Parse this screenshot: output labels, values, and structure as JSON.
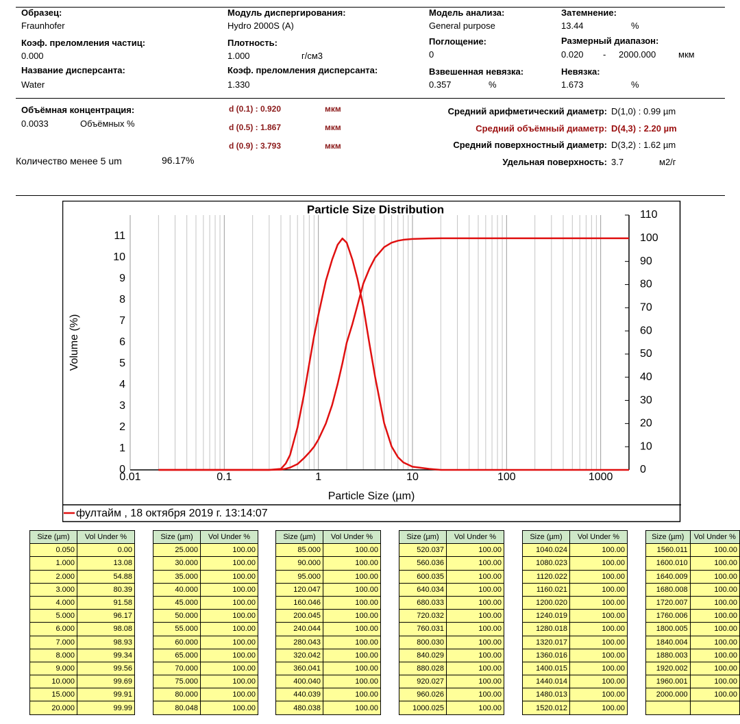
{
  "report": {
    "sample": {
      "label": "Образец:",
      "value": "Fraunhofer"
    },
    "module": {
      "label": "Модуль диспергирования:",
      "value": "Hydro 2000S (A)"
    },
    "model": {
      "label": "Модель анализа:",
      "value": "General purpose"
    },
    "obscuration": {
      "label": "Затемнение:",
      "value": "13.44",
      "unit": "%"
    },
    "particle_ri": {
      "label": "Коэф. преломления частиц:",
      "value": "0.000"
    },
    "density": {
      "label": "Плотность:",
      "value": "1.000",
      "unit": "г/см3"
    },
    "absorption": {
      "label": "Поглощение:",
      "value": "0"
    },
    "size_range": {
      "label": "Размерный диапазон:",
      "from": "0.020",
      "sep": "-",
      "to": "2000.000",
      "unit": "мкм"
    },
    "dispersant": {
      "label": "Название дисперсанта:",
      "value": "Water"
    },
    "dispersant_ri": {
      "label": "Коэф. преломления дисперсанта:",
      "value": "1.330"
    },
    "weighted_residual": {
      "label": "Взвешенная невязка:",
      "value": "0.357",
      "unit": "%"
    },
    "residual": {
      "label": "Невязка:",
      "value": "1.673",
      "unit": "%"
    },
    "concentration": {
      "label": "Объёмная концентрация:",
      "value": "0.0033",
      "unit": "Объёмных %"
    },
    "d_values": [
      {
        "label": "d (0.1) : 0.920",
        "unit": "мкм"
      },
      {
        "label": "d (0.5) : 1.867",
        "unit": "мкм"
      },
      {
        "label": "d (0.9) : 3.793",
        "unit": "мкм"
      }
    ],
    "means": [
      {
        "label": "Средний арифметический диаметр:",
        "value": "D(1,0) : 0.99 µm"
      },
      {
        "label": "Средний объёмный диаметр:",
        "value": "D(4,3) : 2.20 µm"
      },
      {
        "label": "Средний поверхностный диаметр:",
        "value": "D(3,2) : 1.62 µm"
      }
    ],
    "surface": {
      "label": "Удельная поверхность:",
      "value": "3.7",
      "unit": "м2/г"
    },
    "below5": {
      "label": "Количество менее 5 um",
      "value": "96.17%"
    }
  },
  "chart_data": {
    "type": "line",
    "title": "Particle Size Distribution",
    "x_label": "Particle Size (µm)",
    "y_label": "Volume (%)",
    "x": [
      0.02,
      0.3,
      0.4,
      0.45,
      0.5,
      0.6,
      0.7,
      0.8,
      0.9,
      1.0,
      1.2,
      1.4,
      1.6,
      1.8,
      2.0,
      2.3,
      2.6,
      3.0,
      3.5,
      4,
      5,
      6,
      7,
      8,
      10,
      15,
      20,
      30,
      2000
    ],
    "series": [
      {
        "name": "фултайм , 18 октября 2019 г. 13:14:07",
        "color": "#e01010",
        "values": [
          0,
          0,
          0.05,
          0.3,
          0.7,
          2.0,
          3.5,
          5.0,
          6.3,
          7.3,
          8.9,
          9.9,
          10.6,
          10.9,
          10.7,
          9.9,
          9.0,
          7.7,
          5.9,
          4.4,
          2.2,
          1.1,
          0.6,
          0.35,
          0.15,
          0.05,
          0,
          0,
          0
        ]
      },
      {
        "color": "#e01010",
        "axis": "y2",
        "values": [
          0,
          0,
          0.1,
          0.5,
          1,
          2.5,
          5,
          7.5,
          10,
          13.08,
          20,
          28,
          37,
          46,
          54.88,
          63,
          71,
          80.39,
          87,
          91.58,
          96.17,
          98.08,
          98.93,
          99.34,
          99.69,
          99.91,
          99.99,
          100,
          100
        ]
      }
    ],
    "log_x": true,
    "xlim": [
      0.01,
      2000
    ],
    "xticks": [
      0.01,
      0.1,
      1,
      10,
      100,
      1000
    ],
    "ylim": [
      0,
      12
    ],
    "yticks": [
      0,
      1,
      2,
      3,
      4,
      5,
      6,
      7,
      8,
      9,
      10,
      11
    ],
    "y2lim": [
      0,
      110
    ],
    "y2ticks": [
      0,
      10,
      20,
      30,
      40,
      50,
      60,
      70,
      80,
      90,
      100,
      110
    ],
    "grid": "x"
  },
  "tables": {
    "header": [
      "Size (µm)",
      "Vol Under %"
    ],
    "blocks": [
      [
        [
          "0.050",
          "0.00"
        ],
        [
          "1.000",
          "13.08"
        ],
        [
          "2.000",
          "54.88"
        ],
        [
          "3.000",
          "80.39"
        ],
        [
          "4.000",
          "91.58"
        ],
        [
          "5.000",
          "96.17"
        ],
        [
          "6.000",
          "98.08"
        ],
        [
          "7.000",
          "98.93"
        ],
        [
          "8.000",
          "99.34"
        ],
        [
          "9.000",
          "99.56"
        ],
        [
          "10.000",
          "99.69"
        ],
        [
          "15.000",
          "99.91"
        ],
        [
          "20.000",
          "99.99"
        ]
      ],
      [
        [
          "25.000",
          "100.00"
        ],
        [
          "30.000",
          "100.00"
        ],
        [
          "35.000",
          "100.00"
        ],
        [
          "40.000",
          "100.00"
        ],
        [
          "45.000",
          "100.00"
        ],
        [
          "50.000",
          "100.00"
        ],
        [
          "55.000",
          "100.00"
        ],
        [
          "60.000",
          "100.00"
        ],
        [
          "65.000",
          "100.00"
        ],
        [
          "70.000",
          "100.00"
        ],
        [
          "75.000",
          "100.00"
        ],
        [
          "80.000",
          "100.00"
        ],
        [
          "80.048",
          "100.00"
        ]
      ],
      [
        [
          "85.000",
          "100.00"
        ],
        [
          "90.000",
          "100.00"
        ],
        [
          "95.000",
          "100.00"
        ],
        [
          "120.047",
          "100.00"
        ],
        [
          "160.046",
          "100.00"
        ],
        [
          "200.045",
          "100.00"
        ],
        [
          "240.044",
          "100.00"
        ],
        [
          "280.043",
          "100.00"
        ],
        [
          "320.042",
          "100.00"
        ],
        [
          "360.041",
          "100.00"
        ],
        [
          "400.040",
          "100.00"
        ],
        [
          "440.039",
          "100.00"
        ],
        [
          "480.038",
          "100.00"
        ]
      ],
      [
        [
          "520.037",
          "100.00"
        ],
        [
          "560.036",
          "100.00"
        ],
        [
          "600.035",
          "100.00"
        ],
        [
          "640.034",
          "100.00"
        ],
        [
          "680.033",
          "100.00"
        ],
        [
          "720.032",
          "100.00"
        ],
        [
          "760.031",
          "100.00"
        ],
        [
          "800.030",
          "100.00"
        ],
        [
          "840.029",
          "100.00"
        ],
        [
          "880.028",
          "100.00"
        ],
        [
          "920.027",
          "100.00"
        ],
        [
          "960.026",
          "100.00"
        ],
        [
          "1000.025",
          "100.00"
        ]
      ],
      [
        [
          "1040.024",
          "100.00"
        ],
        [
          "1080.023",
          "100.00"
        ],
        [
          "1120.022",
          "100.00"
        ],
        [
          "1160.021",
          "100.00"
        ],
        [
          "1200.020",
          "100.00"
        ],
        [
          "1240.019",
          "100.00"
        ],
        [
          "1280.018",
          "100.00"
        ],
        [
          "1320.017",
          "100.00"
        ],
        [
          "1360.016",
          "100.00"
        ],
        [
          "1400.015",
          "100.00"
        ],
        [
          "1440.014",
          "100.00"
        ],
        [
          "1480.013",
          "100.00"
        ],
        [
          "1520.012",
          "100.00"
        ]
      ],
      [
        [
          "1560.011",
          "100.00"
        ],
        [
          "1600.010",
          "100.00"
        ],
        [
          "1640.009",
          "100.00"
        ],
        [
          "1680.008",
          "100.00"
        ],
        [
          "1720.007",
          "100.00"
        ],
        [
          "1760.006",
          "100.00"
        ],
        [
          "1800.005",
          "100.00"
        ],
        [
          "1840.004",
          "100.00"
        ],
        [
          "1880.003",
          "100.00"
        ],
        [
          "1920.002",
          "100.00"
        ],
        [
          "1960.001",
          "100.00"
        ],
        [
          "2000.000",
          "100.00"
        ]
      ]
    ]
  }
}
